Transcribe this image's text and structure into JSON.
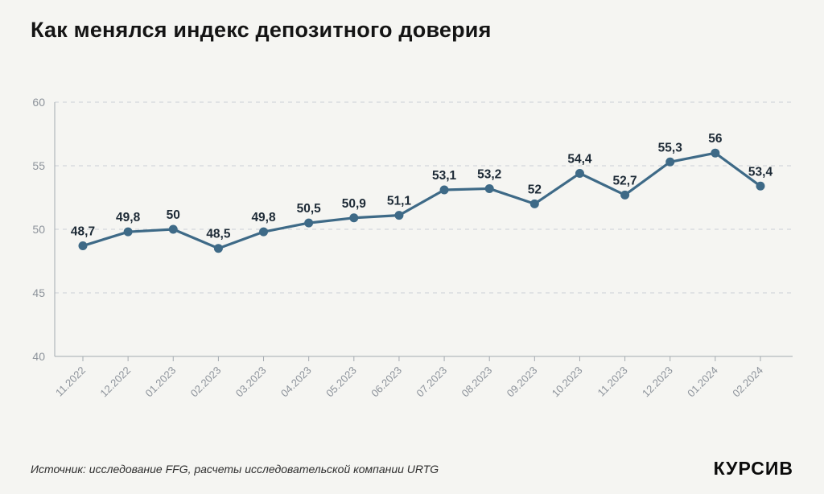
{
  "header": {
    "title": "Как менялся индекс депозитного доверия"
  },
  "footer": {
    "source": "Источник: исследование FFG, расчеты исследовательской компании URTG",
    "logo": "КУРСИВ"
  },
  "chart_data": {
    "type": "line",
    "title": "Как менялся индекс депозитного доверия",
    "categories": [
      "11.2022",
      "12.2022",
      "01.2023",
      "02.2023",
      "03.2023",
      "04.2023",
      "05.2023",
      "06.2023",
      "07.2023",
      "08.2023",
      "09.2023",
      "10.2023",
      "11.2023",
      "12.2023",
      "01.2024",
      "02.2024"
    ],
    "values": [
      48.7,
      49.8,
      50,
      48.5,
      49.8,
      50.5,
      50.9,
      51.1,
      53.1,
      53.2,
      52,
      54.4,
      52.7,
      55.3,
      56,
      53.4
    ],
    "point_labels": [
      "48,7",
      "49,8",
      "50",
      "48,5",
      "49,8",
      "50,5",
      "50,9",
      "51,1",
      "53,1",
      "53,2",
      "52",
      "54,4",
      "52,7",
      "55,3",
      "56",
      "53,4"
    ],
    "xlabel": "",
    "ylabel": "",
    "ylim": [
      40,
      60
    ],
    "yticks": [
      40,
      45,
      50,
      55,
      60
    ],
    "grid": "horizontal-dashed",
    "legend": "none",
    "x_tick_rotation": -45,
    "line_color": "#3e6a87",
    "point_color": "#3e6a87",
    "value_label_color": "#1d2a36",
    "axis_color": "#a4aab0",
    "tick_label_color": "#8d939b",
    "background_color": "#f5f5f2"
  }
}
